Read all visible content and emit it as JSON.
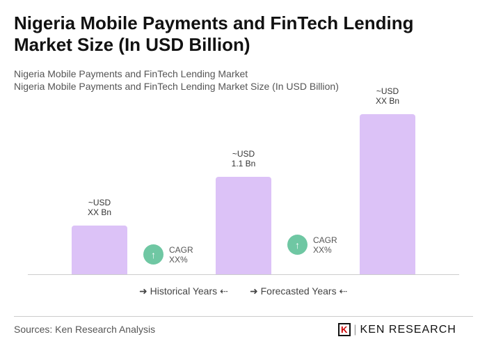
{
  "title": "Nigeria Mobile Payments and FinTech Lending Market Size (In USD Billion)",
  "subtitle1": "Nigeria Mobile Payments and FinTech Lending Market",
  "subtitle2": "Nigeria Mobile Payments and FinTech Lending Market Size (In USD Billion)",
  "chart_data": {
    "type": "bar",
    "bars": [
      {
        "label_line1": "~USD",
        "label_line2": "XX Bn",
        "value": null
      },
      {
        "label_line1": "~USD",
        "label_line2": "1.1 Bn",
        "value": 1.1
      },
      {
        "label_line1": "~USD",
        "label_line2": "XX Bn",
        "value": null
      }
    ],
    "cagr": [
      {
        "line1": "CAGR",
        "line2": "XX%"
      },
      {
        "line1": "CAGR",
        "line2": "XX%"
      }
    ],
    "bar_color": "#dcc2f7",
    "cagr_color": "#6fc7a3",
    "legend": {
      "historical": "Historical Years",
      "forecasted": "Forecasted Years"
    }
  },
  "footer": {
    "sources": "Sources: Ken Research Analysis",
    "logo": "KEN RESEARCH"
  }
}
